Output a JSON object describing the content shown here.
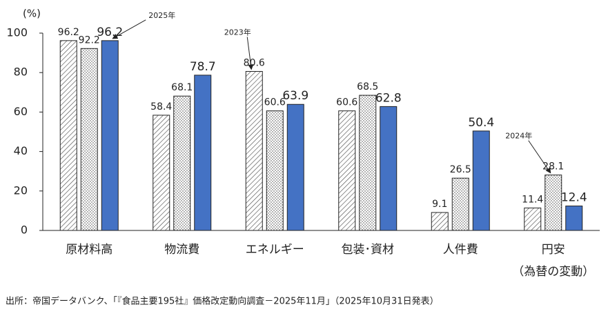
{
  "chart_data": {
    "type": "bar",
    "y_label": "(%)",
    "categories": [
      "原材料高",
      "物流費",
      "エネルギー",
      "包装･資材",
      "人件費",
      "円安\n（為替の変動）"
    ],
    "series": [
      {
        "name": "2023年",
        "color": "#ffffff",
        "pattern": "hatch",
        "values": [
          96.2,
          58.4,
          80.6,
          60.6,
          9.1,
          11.4
        ]
      },
      {
        "name": "2024年",
        "color": "#ffffff",
        "pattern": "dots",
        "values": [
          92.2,
          68.1,
          60.6,
          68.5,
          26.5,
          28.1
        ]
      },
      {
        "name": "2025年",
        "color": "#4472c4",
        "pattern": "solid",
        "values": [
          96.2,
          78.7,
          63.9,
          62.8,
          50.4,
          12.4
        ]
      }
    ],
    "ylim": [
      0,
      100
    ],
    "yticks": [
      0,
      20,
      40,
      60,
      80,
      100
    ],
    "source": "出所：帝国データバンク、「『食品主要195社』価格改定動向調査－2025年11月」（2025年10月31日発表）"
  }
}
